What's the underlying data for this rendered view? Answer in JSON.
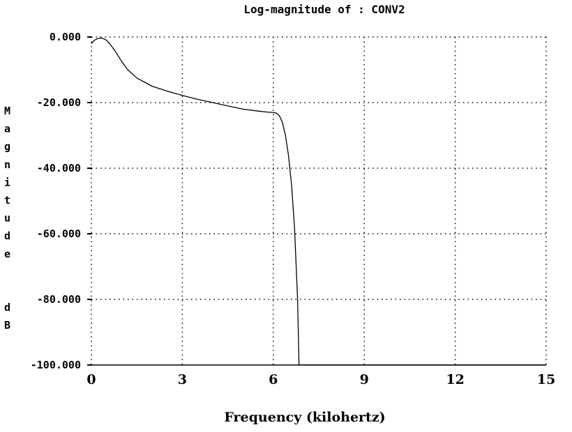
{
  "chart_data": {
    "type": "line",
    "title": "Log-magnitude of :  CONV2",
    "xlabel": "Frequency (kilohertz)",
    "ylabel": "Magnitude  dB",
    "xlim": [
      0,
      15
    ],
    "ylim": [
      -100,
      0
    ],
    "grid": true,
    "x_ticks": [
      0,
      3,
      6,
      9,
      12,
      15
    ],
    "x_tick_labels": [
      "0",
      "3",
      "6",
      "9",
      "12",
      "15"
    ],
    "y_ticks": [
      0,
      -20,
      -40,
      -60,
      -80,
      -100
    ],
    "y_tick_labels": [
      "0.000",
      "-20.000",
      "-40.000",
      "-60.000",
      "-80.000",
      "-100.000"
    ],
    "series": [
      {
        "color": "#000000",
        "x": [
          0,
          0.1,
          0.2,
          0.3,
          0.4,
          0.5,
          0.6,
          0.8,
          1.0,
          1.2,
          1.5,
          2.0,
          2.5,
          3.0,
          3.5,
          4.0,
          4.5,
          5.0,
          5.5,
          5.8,
          6.0,
          6.1,
          6.2,
          6.3,
          6.4,
          6.5,
          6.6,
          6.7,
          6.8,
          6.85,
          7.0,
          9.0,
          12.0,
          15.0
        ],
        "y": [
          -2.0,
          -1.0,
          -0.5,
          -0.3,
          -0.5,
          -1.0,
          -2.0,
          -4.5,
          -7.5,
          -10.0,
          -12.5,
          -15.0,
          -16.5,
          -17.8,
          -19.0,
          -20.0,
          -21.0,
          -22.0,
          -22.6,
          -22.9,
          -23.0,
          -23.2,
          -24.0,
          -26.0,
          -30.0,
          -36.0,
          -45.0,
          -58.0,
          -80.0,
          -100.0,
          -100.0,
          -100.0,
          -100.0,
          -100.0
        ]
      }
    ]
  }
}
